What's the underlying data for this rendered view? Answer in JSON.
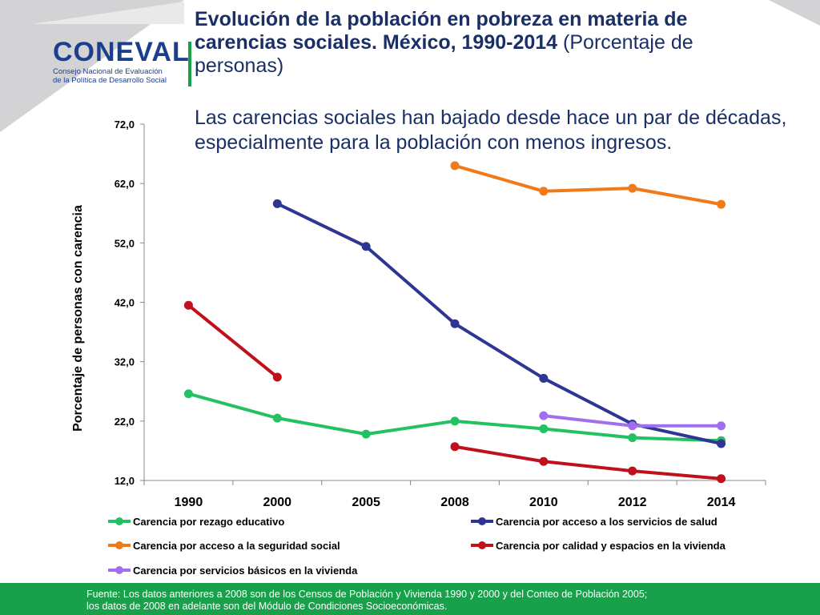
{
  "header": {
    "logo_word": "CONEVAL",
    "logo_tag_line1": "Consejo Nacional de Evaluación",
    "logo_tag_line2": "de la Política de Desarrollo Social",
    "title_bold": "Evolución de la población en pobreza en materia de carencias sociales. México, 1990-2014",
    "title_normal": " (Porcentaje de personas)",
    "subtitle": "Las carencias sociales han bajado desde hace un par de décadas, especialmente para la población con menos ingresos."
  },
  "footer": {
    "line1": "Fuente: Los datos anteriores a 2008 son de los Censos de Población y Vivienda 1990 y 2000 y del Conteo de Población 2005;",
    "line2": "los datos de 2008 en adelante son del Módulo de Condiciones Socioeconómicas."
  },
  "chart_data": {
    "type": "line",
    "title": "Evolución de la población en pobreza en materia de carencias sociales. México, 1990-2014 (Porcentaje de personas)",
    "xlabel": "",
    "ylabel": "Porcentaje de personas con carencia",
    "categories": [
      "1990",
      "2000",
      "2005",
      "2008",
      "2010",
      "2012",
      "2014"
    ],
    "ylim": [
      12,
      72
    ],
    "yticks": [
      "12,0",
      "22,0",
      "32,0",
      "42,0",
      "52,0",
      "62,0",
      "72,0"
    ],
    "grid": false,
    "legend_position": "bottom",
    "series": [
      {
        "name": "Carencia por rezago educativo",
        "color": "#22c162",
        "values": [
          26.6,
          22.5,
          19.8,
          22.0,
          20.7,
          19.2,
          18.7
        ]
      },
      {
        "name": "Carencia por acceso a los servicios de salud",
        "color": "#2e3592",
        "values": [
          null,
          58.6,
          51.4,
          38.4,
          29.2,
          21.5,
          18.2
        ]
      },
      {
        "name": "Carencia por acceso a la seguridad social",
        "color": "#f07a1a",
        "values": [
          null,
          null,
          null,
          65.0,
          60.7,
          61.2,
          58.5
        ]
      },
      {
        "name": "Carencia por calidad y espacios en la vivienda",
        "color": "#c0101c",
        "values": [
          41.5,
          29.4,
          null,
          17.7,
          15.2,
          13.6,
          12.3
        ]
      },
      {
        "name": "Carencia por servicios básicos en la vivienda",
        "color": "#9f6ff0",
        "values": [
          null,
          null,
          null,
          null,
          22.9,
          21.2,
          21.2
        ]
      }
    ]
  }
}
